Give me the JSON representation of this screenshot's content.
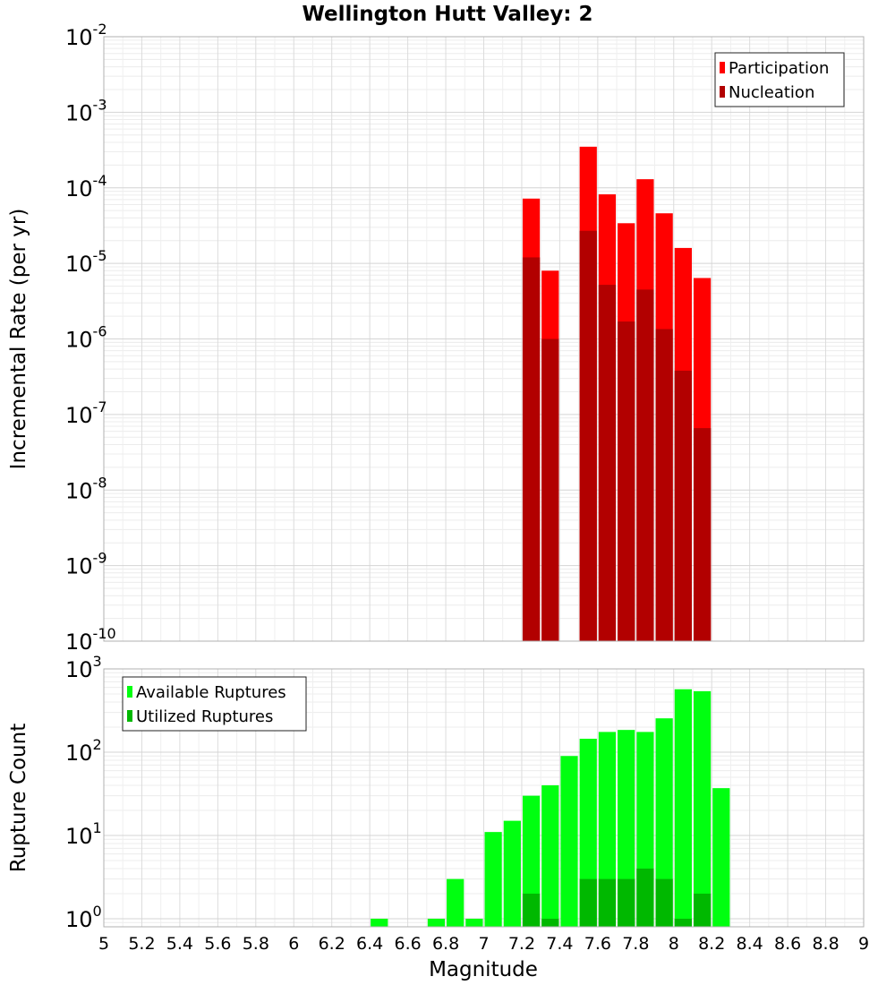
{
  "chart_data": {
    "title": "Wellington Hutt Valley: 2",
    "xlabel": "Magnitude",
    "xlim": [
      5,
      9
    ],
    "x_ticks": [
      "5",
      "5.2",
      "5.4",
      "5.6",
      "5.8",
      "6",
      "6.2",
      "6.4",
      "6.6",
      "6.8",
      "7",
      "7.2",
      "7.4",
      "7.6",
      "7.8",
      "8",
      "8.2",
      "8.4",
      "8.6",
      "8.8",
      "9"
    ],
    "bin_width": 0.1,
    "panels": [
      {
        "type": "bar",
        "scale": "log",
        "ylabel": "Incremental Rate (per yr)",
        "ylim": [
          1e-10,
          0.01
        ],
        "y_ticks": [
          {
            "base": "10",
            "exp": "-10",
            "value": 1e-10
          },
          {
            "base": "10",
            "exp": "-9",
            "value": 1e-09
          },
          {
            "base": "10",
            "exp": "-8",
            "value": 1e-08
          },
          {
            "base": "10",
            "exp": "-7",
            "value": 1e-07
          },
          {
            "base": "10",
            "exp": "-6",
            "value": 1e-06
          },
          {
            "base": "10",
            "exp": "-5",
            "value": 1e-05
          },
          {
            "base": "10",
            "exp": "-4",
            "value": 0.0001
          },
          {
            "base": "10",
            "exp": "-3",
            "value": 0.001
          },
          {
            "base": "10",
            "exp": "-2",
            "value": 0.01
          }
        ],
        "legend_position": "top-right",
        "series": [
          {
            "name": "Participation",
            "color": "#ff0000",
            "x": [
              7.25,
              7.35,
              7.55,
              7.65,
              7.75,
              7.85,
              7.95,
              8.05,
              8.15
            ],
            "values": [
              7.2e-05,
              8e-06,
              0.00035,
              8.2e-05,
              3.4e-05,
              0.00013,
              4.6e-05,
              1.6e-05,
              6.4e-06
            ]
          },
          {
            "name": "Nucleation",
            "color": "#b20000",
            "x": [
              7.25,
              7.35,
              7.55,
              7.65,
              7.75,
              7.85,
              7.95,
              8.05,
              8.15
            ],
            "values": [
              1.2e-05,
              1e-06,
              2.7e-05,
              5.2e-06,
              1.7e-06,
              4.5e-06,
              1.35e-06,
              3.8e-07,
              6.6e-08
            ]
          }
        ]
      },
      {
        "type": "bar",
        "scale": "log",
        "ylabel": "Rupture Count",
        "ylim": [
          0.8,
          1000
        ],
        "y_ticks": [
          {
            "base": "10",
            "exp": "0",
            "value": 1
          },
          {
            "base": "10",
            "exp": "1",
            "value": 10
          },
          {
            "base": "10",
            "exp": "2",
            "value": 100
          },
          {
            "base": "10",
            "exp": "3",
            "value": 1000
          }
        ],
        "legend_position": "top-left",
        "series": [
          {
            "name": "Available Ruptures",
            "color": "#00ff10",
            "x": [
              6.45,
              6.75,
              6.85,
              6.95,
              7.05,
              7.15,
              7.25,
              7.35,
              7.45,
              7.55,
              7.65,
              7.75,
              7.85,
              7.95,
              8.05,
              8.15,
              8.25
            ],
            "values": [
              1,
              1,
              3,
              1,
              11,
              15,
              30,
              40,
              90,
              145,
              175,
              185,
              175,
              255,
              570,
              540,
              37
            ]
          },
          {
            "name": "Utilized Ruptures",
            "color": "#00b800",
            "x": [
              7.25,
              7.35,
              7.55,
              7.65,
              7.75,
              7.85,
              7.95,
              8.05,
              8.15
            ],
            "values": [
              2,
              1,
              3,
              3,
              3,
              4,
              3,
              1,
              2
            ]
          }
        ]
      }
    ]
  }
}
